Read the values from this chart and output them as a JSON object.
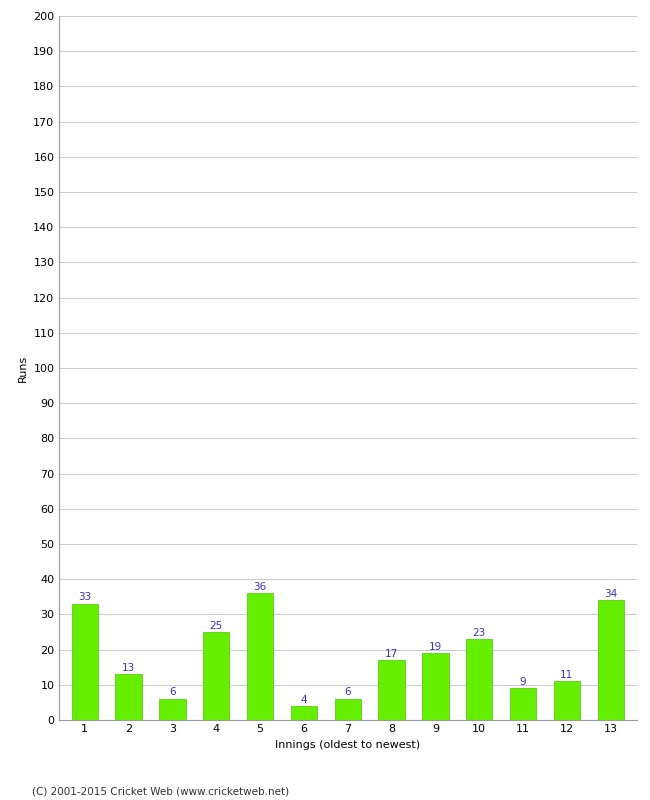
{
  "xlabel": "Innings (oldest to newest)",
  "ylabel": "Runs",
  "categories": [
    "1",
    "2",
    "3",
    "4",
    "5",
    "6",
    "7",
    "8",
    "9",
    "10",
    "11",
    "12",
    "13"
  ],
  "values": [
    33,
    13,
    6,
    25,
    36,
    4,
    6,
    17,
    19,
    23,
    9,
    11,
    34
  ],
  "bar_color": "#66ee00",
  "bar_edge_color": "#44cc00",
  "label_color": "#3333cc",
  "ylim": [
    0,
    200
  ],
  "yticks": [
    0,
    10,
    20,
    30,
    40,
    50,
    60,
    70,
    80,
    90,
    100,
    110,
    120,
    130,
    140,
    150,
    160,
    170,
    180,
    190,
    200
  ],
  "grid_color": "#cccccc",
  "background_color": "#ffffff",
  "footer_text": "(C) 2001-2015 Cricket Web (www.cricketweb.net)",
  "label_fontsize": 7.5,
  "axis_label_fontsize": 8,
  "tick_fontsize": 8,
  "footer_fontsize": 7.5
}
